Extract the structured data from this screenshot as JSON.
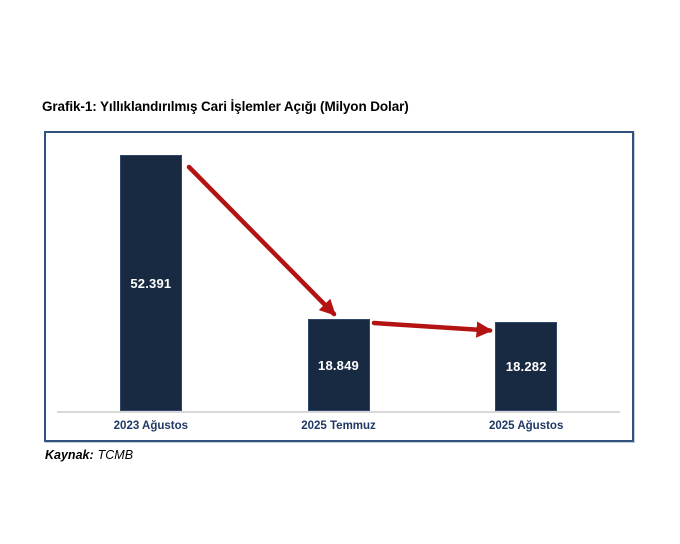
{
  "title": "Grafik-1: Yıllıklandırılmış Cari İşlemler Açığı (Milyon Dolar)",
  "source": {
    "label": "Kaynak:",
    "value": "TCMB"
  },
  "colors": {
    "bar_fill": "#182A42",
    "bar_border": "#2F4768",
    "value_label": "#FFFFFF",
    "category_label": "#1F3864",
    "arrow": "#B31312",
    "frame_border": "#31517F",
    "axis_line": "#D9D9D9",
    "title_text": "#000000",
    "background": "#FFFFFF"
  },
  "chart_data": {
    "type": "bar",
    "title": "Grafik-1: Yıllıklandırılmış Cari İşlemler Açığı (Milyon Dolar)",
    "unit": "Milyon Dolar",
    "categories": [
      "2023 Ağustos",
      "2025 Temmuz",
      "2025 Ağustos"
    ],
    "values": [
      52391,
      18849,
      18282
    ],
    "value_labels": [
      "52.391",
      "18.849",
      "18.282"
    ],
    "xlabel": "",
    "ylabel": "",
    "ylim": [
      0,
      52391
    ],
    "grid": false,
    "legend": false,
    "value_label_position": "inside-center",
    "annotations": [
      {
        "type": "arrow",
        "from": "2023 Ağustos",
        "to": "2025 Temmuz"
      },
      {
        "type": "arrow",
        "from": "2025 Temmuz",
        "to": "2025 Ağustos"
      }
    ]
  }
}
